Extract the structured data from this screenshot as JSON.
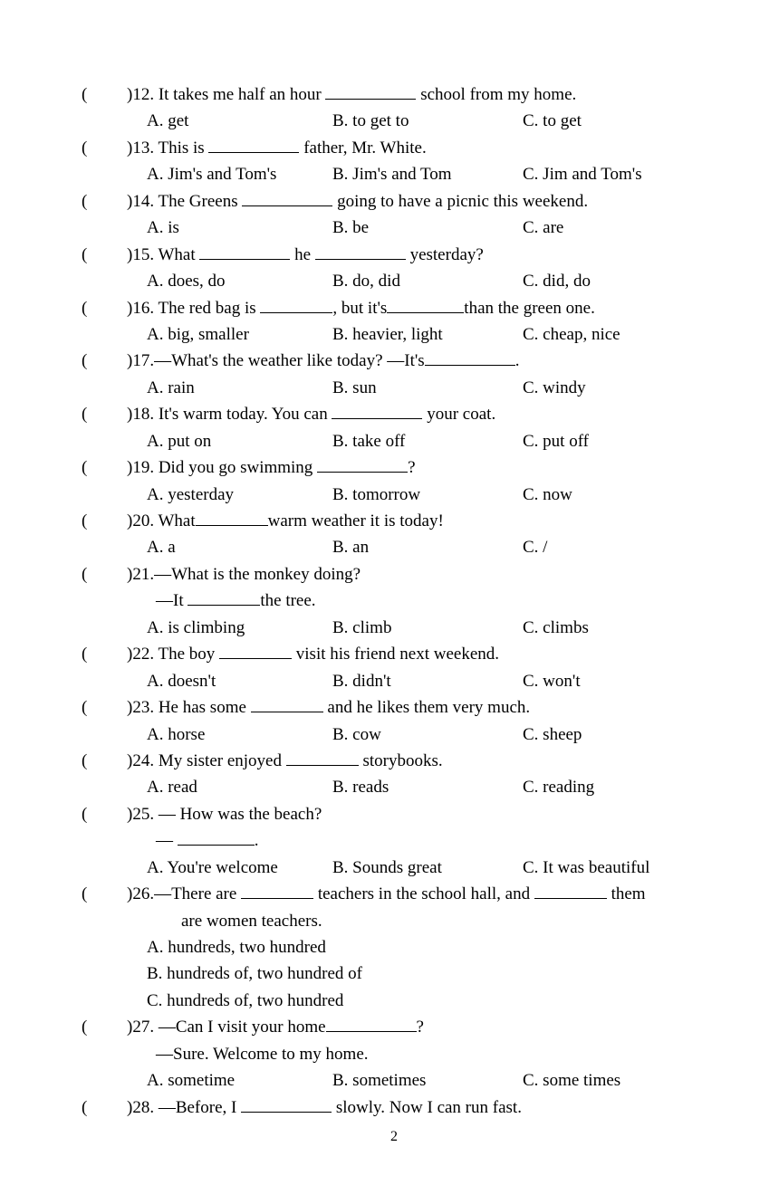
{
  "page_number": "2",
  "questions": [
    {
      "num": "12",
      "stem_before": ")12. It takes me half an hour ",
      "stem_after": " school from my home.",
      "A": "A. get",
      "B": "B. to get to",
      "C": "C. to get"
    },
    {
      "num": "13",
      "stem_before": ")13. This is ",
      "stem_after": " father, Mr. White.",
      "A": "A.  Jim's and Tom's",
      "B": "B. Jim's and Tom",
      "C": "C. Jim and Tom's"
    },
    {
      "num": "14",
      "stem_before": ")14. The Greens ",
      "stem_after": " going to have a picnic this weekend.",
      "A": "A.  is",
      "B": "B. be",
      "C": "C. are"
    },
    {
      "num": "15",
      "stem_before": ")15. What ",
      "stem_mid": " he ",
      "stem_after": " yesterday?",
      "A": "A.  does, do",
      "B": "B. do, did",
      "C": "C. did, do"
    },
    {
      "num": "16",
      "stem_before": ")16. The red bag is ",
      "stem_mid": ", but it's",
      "stem_after": "than the green one.",
      "A": "A. big, smaller",
      "B": "B. heavier, light",
      "C": "C. cheap, nice"
    },
    {
      "num": "17",
      "stem_before": ")17.—What's the weather like today?    —It's",
      "stem_after": ".",
      "A": "A. rain",
      "B": "B. sun",
      "C": "C. windy"
    },
    {
      "num": "18",
      "stem_before": ")18. It's warm today. You can ",
      "stem_after": " your coat.",
      "A": "A. put on",
      "B": "B. take off",
      "C": "C. put off"
    },
    {
      "num": "19",
      "stem_before": ")19. Did you go swimming ",
      "stem_after": "?",
      "A": "A. yesterday",
      "B": "B. tomorrow",
      "C": "C. now"
    },
    {
      "num": "20",
      "stem_before": ")20. What",
      "stem_after": "warm weather it is today!",
      "A": "A. a",
      "B": "B.   an",
      "C": "C. /"
    },
    {
      "num": "21",
      "stem_line1": ")21.—What is the monkey doing?",
      "stem_line2_pre": "—It ",
      "stem_line2_post": "the tree.",
      "A": "A. is climbing",
      "B": "B. climb",
      "C": "C. climbs"
    },
    {
      "num": "22",
      "stem_before": ")22. The boy ",
      "stem_after": " visit his friend next weekend.",
      "A": "A. doesn't",
      "B": "B. didn't",
      "C": "C. won't"
    },
    {
      "num": "23",
      "stem_before": ")23. He has some ",
      "stem_after": " and he likes them very much.",
      "A": "A.  horse",
      "B": "B. cow",
      "C": "C. sheep"
    },
    {
      "num": "24",
      "stem_before": ")24. My sister enjoyed ",
      "stem_after": " storybooks.",
      "A": "A.  read",
      "B": "B. reads",
      "C": "C. reading"
    },
    {
      "num": "25",
      "stem_line1": ")25. — How was the beach?",
      "stem_line2_pre": "— ",
      "stem_line2_post": ".",
      "A": "A.  You're welcome",
      "B": "B. Sounds great",
      "C": "C. It was beautiful"
    },
    {
      "num": "26",
      "stem_before": ")26.—There are ",
      "stem_mid": " teachers in the school hall, and ",
      "stem_after": " them",
      "stem_line2": "are women teachers.",
      "A": "A.  hundreds, two hundred",
      "B": "B.  hundreds of, two hundred of",
      "C": "C.  hundreds of, two hundred"
    },
    {
      "num": "27",
      "stem_before": ")27. —Can I visit your home",
      "stem_after": "?",
      "stem_line2": "—Sure. Welcome to my home.",
      "A": "A.  sometime",
      "B": "B. sometimes",
      "C": "C. some times"
    },
    {
      "num": "28",
      "stem_before": ")28. —Before, I ",
      "stem_after": " slowly. Now I can run fast."
    }
  ]
}
